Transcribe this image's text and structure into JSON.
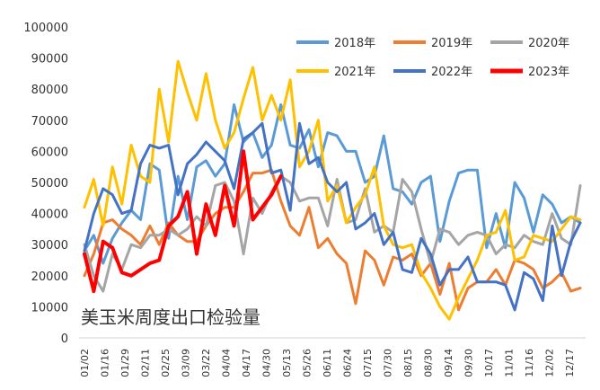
{
  "chart_data": {
    "type": "line",
    "title": "美玉米周度出口检验量",
    "ylim": [
      0,
      100000
    ],
    "yticks": [
      0,
      10000,
      20000,
      30000,
      40000,
      50000,
      60000,
      70000,
      80000,
      90000,
      100000
    ],
    "xticks": [
      "01/02",
      "01/16",
      "01/29",
      "02/11",
      "02/25",
      "03/09",
      "03/22",
      "04/04",
      "04/17",
      "04/30",
      "05/13",
      "05/26",
      "06/11",
      "06/24",
      "07/15",
      "07/30",
      "08/15",
      "08/30",
      "09/14",
      "09/30",
      "10/17",
      "11/01",
      "11/16",
      "12/02",
      "12/17"
    ],
    "grid": false,
    "legend_position": "top-right",
    "series": [
      {
        "name": "2018年",
        "color": "#5b9bd5",
        "width": 3,
        "values": [
          28000,
          33000,
          24000,
          32000,
          37000,
          41000,
          38000,
          56000,
          54000,
          32000,
          52000,
          38000,
          55000,
          57000,
          52000,
          56000,
          75000,
          63000,
          66000,
          58000,
          62000,
          75000,
          62000,
          61000,
          67000,
          55000,
          66000,
          65000,
          60000,
          60000,
          50000,
          52000,
          65000,
          48000,
          47000,
          43000,
          50000,
          52000,
          31000,
          44000,
          53000,
          54000,
          54000,
          29000,
          40000,
          29000,
          50000,
          45000,
          34000,
          46000,
          43000,
          37000,
          39000,
          37000
        ]
      },
      {
        "name": "2019年",
        "color": "#ed7d31",
        "width": 3,
        "values": [
          20000,
          27000,
          37000,
          38000,
          35000,
          33000,
          30000,
          36000,
          30000,
          37000,
          33000,
          31000,
          31000,
          36000,
          40000,
          42000,
          42000,
          47000,
          53000,
          53000,
          54000,
          44000,
          36000,
          33000,
          42000,
          29000,
          32000,
          27000,
          24000,
          11000,
          28000,
          25000,
          17000,
          26000,
          25000,
          27000,
          20000,
          24000,
          14000,
          24000,
          9000,
          16000,
          18000,
          18000,
          22000,
          17000,
          25000,
          24000,
          22000,
          16000,
          18000,
          21000,
          15000,
          16000
        ]
      },
      {
        "name": "2020年",
        "color": "#a5a5a5",
        "width": 3,
        "values": [
          30000,
          20000,
          15000,
          27000,
          22000,
          30000,
          29000,
          33000,
          33000,
          35000,
          33000,
          35000,
          39000,
          36000,
          49000,
          50000,
          44000,
          27000,
          45000,
          40000,
          47000,
          52000,
          50000,
          44000,
          45000,
          45000,
          36000,
          51000,
          37000,
          38000,
          48000,
          34000,
          36000,
          34000,
          51000,
          47000,
          35000,
          24000,
          35000,
          34000,
          30000,
          33000,
          34000,
          33000,
          27000,
          30000,
          29000,
          33000,
          31000,
          30000,
          40000,
          32000,
          30000,
          49000
        ]
      },
      {
        "name": "2021年",
        "color": "#ffc000",
        "width": 3,
        "values": [
          42000,
          51000,
          36000,
          55000,
          43000,
          62000,
          52000,
          50000,
          80000,
          63000,
          89000,
          79000,
          70000,
          85000,
          70000,
          61000,
          66000,
          77000,
          87000,
          70000,
          78000,
          70000,
          83000,
          55000,
          60000,
          70000,
          44000,
          49000,
          37000,
          42000,
          46000,
          55000,
          36000,
          30000,
          29000,
          30000,
          21000,
          16000,
          10000,
          6000,
          13000,
          19000,
          25000,
          33000,
          34000,
          41000,
          25000,
          26000,
          33000,
          32000,
          31000,
          35000,
          39000,
          38000
        ]
      },
      {
        "name": "2022年",
        "color": "#4472c4",
        "width": 3,
        "values": [
          28000,
          40000,
          48000,
          46000,
          40000,
          41000,
          56000,
          62000,
          61000,
          62000,
          46000,
          56000,
          59000,
          63000,
          60000,
          57000,
          48000,
          64000,
          66000,
          69000,
          53000,
          54000,
          41000,
          69000,
          56000,
          58000,
          50000,
          47000,
          50000,
          35000,
          37000,
          40000,
          30000,
          34000,
          22000,
          21000,
          32000,
          27000,
          17000,
          22000,
          22000,
          26000,
          18000,
          18000,
          18000,
          17000,
          9000,
          21000,
          19000,
          12000,
          36000,
          20000,
          31000,
          37000
        ]
      },
      {
        "name": "2023年",
        "color": "#ff0000",
        "width": 4,
        "values": [
          27000,
          15000,
          31000,
          29000,
          21000,
          20000,
          22000,
          24000,
          25000,
          36000,
          39000,
          47000,
          27000,
          43000,
          33000,
          49000,
          36000,
          60000,
          38000,
          42000,
          46000,
          52000
        ]
      }
    ]
  }
}
